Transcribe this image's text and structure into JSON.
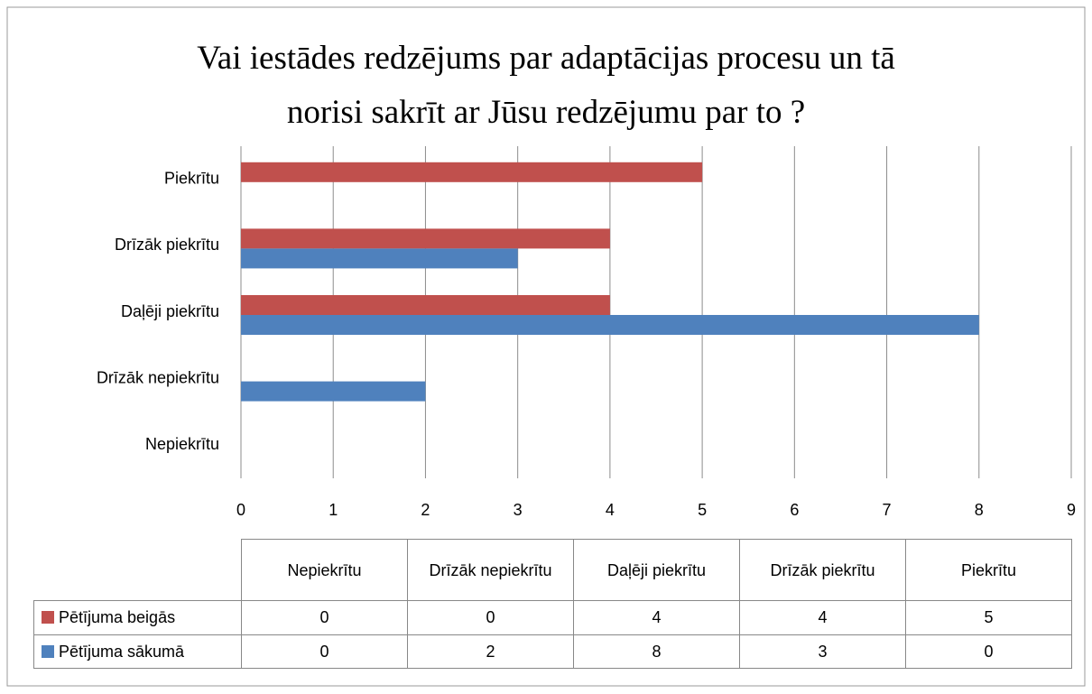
{
  "chart_data": {
    "type": "bar",
    "orientation": "horizontal",
    "title": "Vai iestādes redzējums par adaptācijas procesu un tā norisi sakrīt ar Jūsu redzējumu par to ?",
    "categories": [
      "Nepiekrītu",
      "Drīzāk nepiekrītu",
      "Daļēji piekrītu",
      "Drīzāk piekrītu",
      "Piekrītu"
    ],
    "series": [
      {
        "name": "Pētījuma beigās",
        "color": "#c0504d",
        "values": [
          0,
          0,
          4,
          4,
          5
        ]
      },
      {
        "name": "Pētījuma sākumā",
        "color": "#4f81bd",
        "values": [
          0,
          2,
          8,
          3,
          0
        ]
      }
    ],
    "xlim": [
      0,
      9
    ],
    "xticks": [
      0,
      1,
      2,
      3,
      4,
      5,
      6,
      7,
      8,
      9
    ],
    "grid": true
  }
}
